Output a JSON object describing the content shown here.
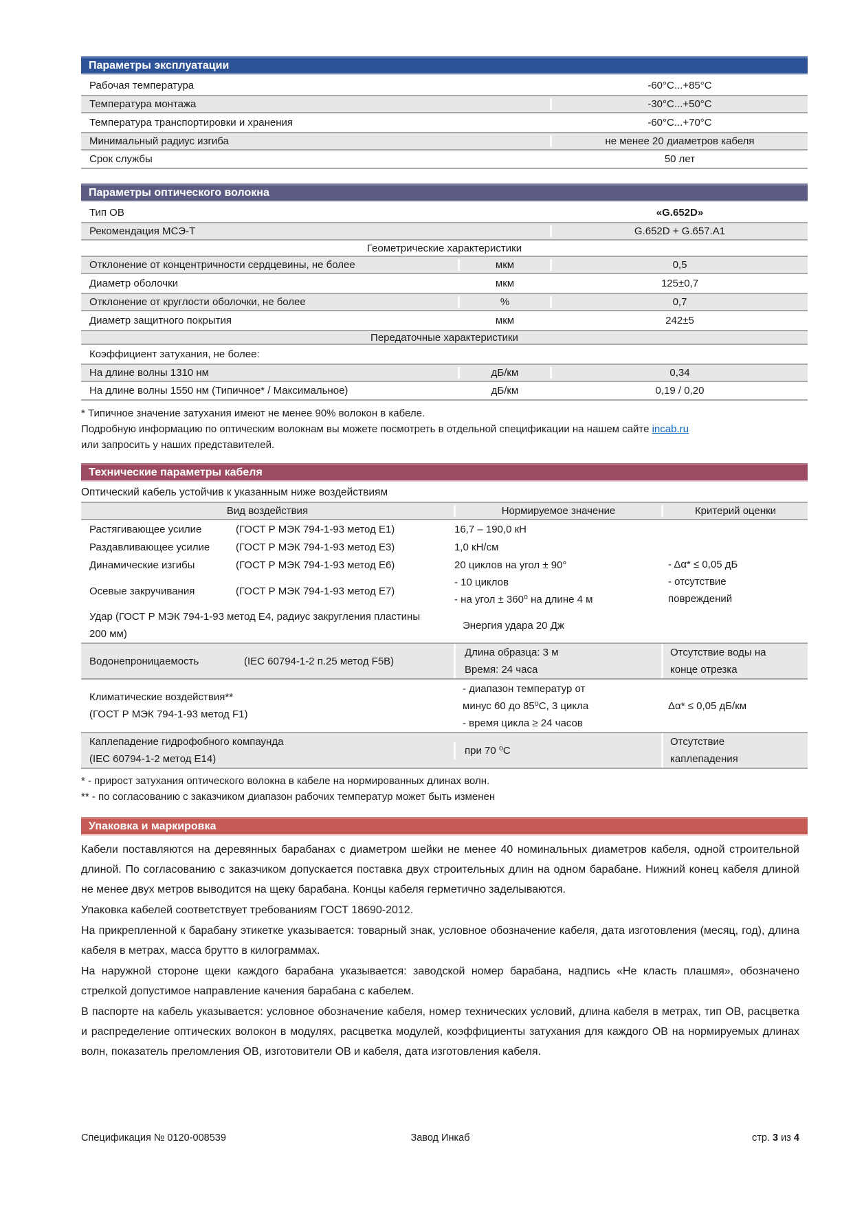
{
  "colors": {
    "header_blue": "#2d5295",
    "header_slate": "#5b5b83",
    "header_maroon": "#9d4a63",
    "header_red": "#c65a55",
    "row_shade": "#e7e7e7",
    "link_blue": "#0563c1"
  },
  "tables": {
    "operation": {
      "title": "Параметры эксплуатации",
      "rows": [
        {
          "label": "Рабочая температура",
          "value": "-60°С...+85°С"
        },
        {
          "label": "Температура монтажа",
          "value": "-30°С...+50°С"
        },
        {
          "label": "Температура транспортировки и хранения",
          "value": "-60°С...+70°С"
        },
        {
          "label": "Минимальный радиус изгиба",
          "value": "не менее 20 диаметров кабеля"
        },
        {
          "label": "Срок службы",
          "value": "50 лет"
        }
      ]
    },
    "fiber": {
      "title": "Параметры оптического волокна",
      "type_row": {
        "label": "Тип ОВ",
        "value": "«G.652D»"
      },
      "rec_row": {
        "label": "Рекомендация МСЭ-Т",
        "value": "G.652D + G.657.A1"
      },
      "geo_section": "Геометрические характеристики",
      "geo_rows": [
        {
          "label": "Отклонение от концентричности сердцевины, не более",
          "unit": "мкм",
          "value": "0,5"
        },
        {
          "label": "Диаметр оболочки",
          "unit": "мкм",
          "value": "125±0,7"
        },
        {
          "label": "Отклонение от круглости оболочки, не более",
          "unit": "%",
          "value": "0,7"
        },
        {
          "label": "Диаметр защитного покрытия",
          "unit": "мкм",
          "value": "242±5"
        }
      ],
      "trans_section": "Передаточные характеристики",
      "atten_label": "Коэффициент затухания, не более:",
      "atten_rows": [
        {
          "label": "На длине волны 1310 нм",
          "unit": "дБ/км",
          "value": "0,34"
        },
        {
          "label": "На длине волны 1550 нм (Типичное* / Максимальное)",
          "unit": "дБ/км",
          "value": "0,19 / 0,20"
        }
      ],
      "footnote": "* Типичное значение затухания имеют не менее 90% волокон в кабеле.",
      "note_before_link": "Подробную информацию по оптическим волокнам вы можете посмотреть в отдельной спецификации на нашем сайте",
      "link": "incab.ru",
      "note_after_link": "или запросить у наших представителей."
    },
    "technical": {
      "title": "Технические параметры кабеля",
      "subtitle": "Оптический кабель устойчив к указанным ниже воздействиям",
      "headers": [
        "Вид воздействия",
        "Нормируемое значение",
        "Критерий оценки"
      ],
      "group_rows": [
        {
          "name": "Растягивающее усилие",
          "method": "(ГОСТ Р МЭК 794-1-93 метод Е1)",
          "value": "16,7 – 190,0 кН"
        },
        {
          "name": "Раздавливающее усилие",
          "method": "(ГОСТ Р МЭК 794-1-93 метод Е3)",
          "value": "1,0 кН/см"
        },
        {
          "name": "Динамические изгибы",
          "method": "(ГОСТ Р МЭК 794-1-93 метод Е6)",
          "value": "20 циклов на угол ± 90°"
        }
      ],
      "twist_row": {
        "name": "Осевые закручивания",
        "method": "(ГОСТ Р МЭК 794-1-93 метод Е7)",
        "value_lines": [
          "- 10 циклов",
          "- на угол ± 360⁰ на длине 4 м"
        ]
      },
      "impact_row": {
        "name": "Удар  (ГОСТ Р МЭК 794-1-93 метод Е4, радиус закругления пластины 200 мм)",
        "value": "Энергия удара 20 Дж"
      },
      "group_criterion_lines": [
        "- Δα* ≤ 0,05 дБ",
        "- отсутствие",
        "повреждений"
      ],
      "water_row": {
        "name": "Водонепроницаемость",
        "method": "(IEC 60794-1-2 п.25 метод F5B)",
        "value_lines": [
          "Длина образца: 3 м",
          "Время: 24 часа"
        ],
        "criterion_lines": [
          "Отсутствие воды на",
          "конце отрезка"
        ]
      },
      "climate_row": {
        "name_lines": [
          "Климатические воздействия**",
          "(ГОСТ Р МЭК 794-1-93 метод F1)"
        ],
        "value_lines": [
          "- диапазон температур от",
          "минус 60 до 85⁰С, 3 цикла",
          "- время цикла ≥ 24 часов"
        ],
        "criterion": "Δα* ≤ 0,05 дБ/км"
      },
      "drip_row": {
        "name_lines": [
          "Каплепадение гидрофобного компаунда",
          "(IEC 60794-1-2 метод Е14)"
        ],
        "value": "при 70 ⁰С",
        "criterion_lines": [
          "Отсутствие",
          "каплепадения"
        ]
      },
      "footnotes": [
        "* - прирост затухания оптического волокна в кабеле на нормированных длинах волн.",
        "** - по согласованию с заказчиком диапазон рабочих температур может быть изменен"
      ]
    },
    "packaging": {
      "title": "Упаковка и маркировка",
      "paragraphs": [
        "Кабели поставляются на деревянных барабанах с диаметром шейки не менее 40 номинальных диаметров кабеля, одной строительной длиной. По согласованию с заказчиком допускается поставка двух строительных длин на одном барабане. Нижний конец кабеля длиной не менее двух метров выводится на щеку барабана. Концы кабеля герметично заделываются.",
        "Упаковка кабелей соответствует требованиям ГОСТ 18690-2012.",
        "На прикрепленной к барабану этикетке указывается: товарный знак, условное обозначение кабеля, дата изготовления (месяц, год), длина кабеля в метрах, масса брутто в килограммах.",
        "На наружной стороне щеки каждого барабана указывается: заводской номер барабана, надпись «Не класть плашмя», обозначено стрелкой допустимое направление качения барабана с кабелем.",
        "В паспорте на кабель указывается: условное обозначение кабеля, номер технических условий, длина кабеля в метрах, тип ОВ, расцветка и распределение оптических волокон в модулях, расцветка модулей, коэффициенты затухания для каждого ОВ на нормируемых длинах волн, показатель преломления ОВ, изготовители ОВ и кабеля, дата изготовления кабеля."
      ]
    }
  },
  "footer": {
    "left": "Спецификация № 0120-008539",
    "center": "Завод Инкаб",
    "page_label": "стр.",
    "page_num": "3",
    "of_label": "из",
    "page_total": "4"
  }
}
